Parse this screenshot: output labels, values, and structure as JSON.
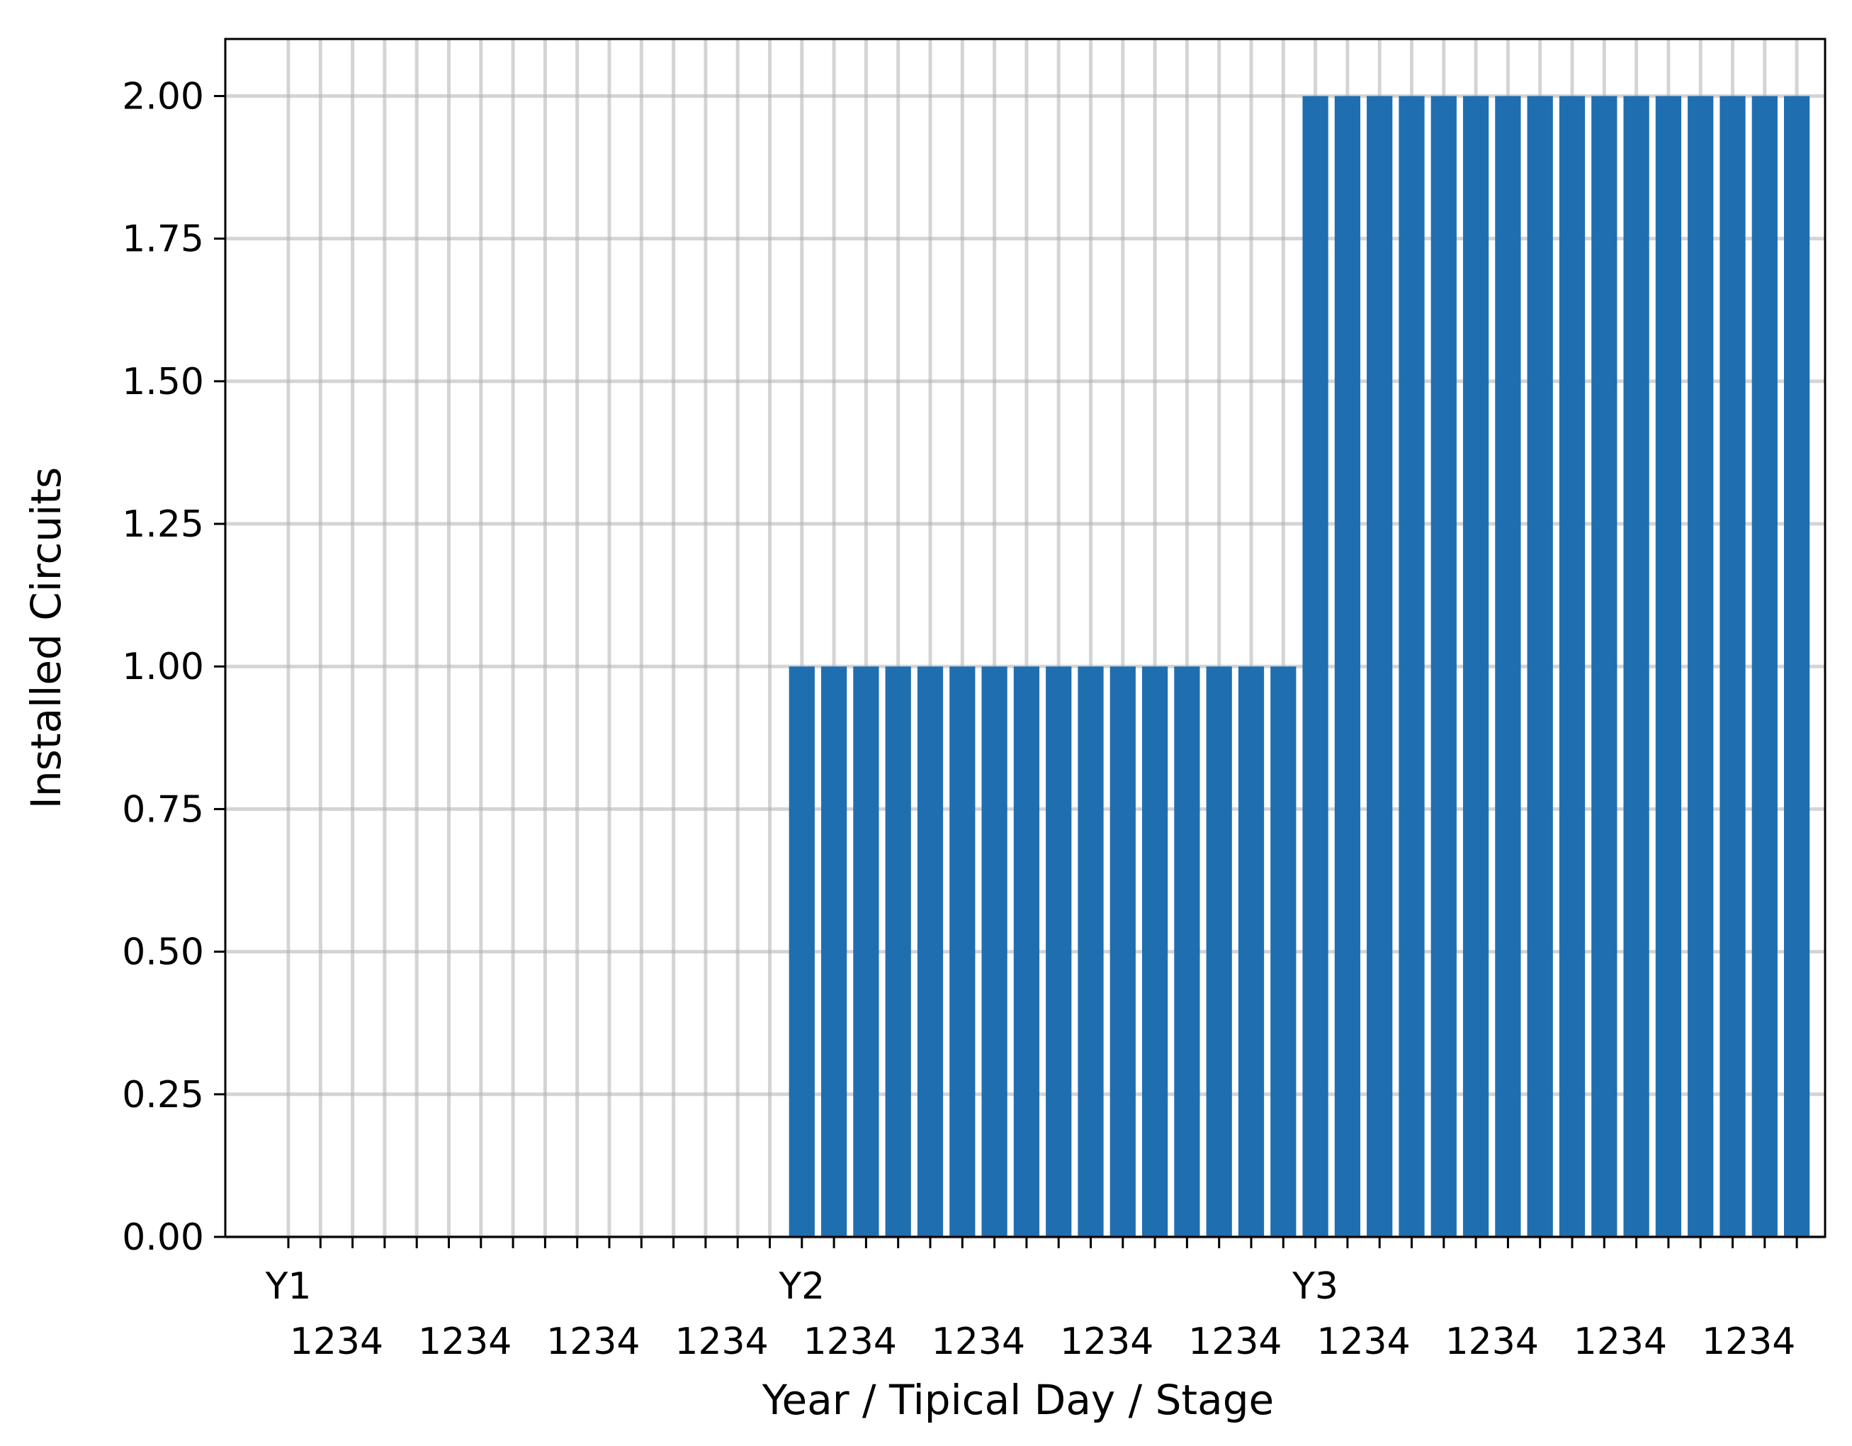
{
  "chart_data": {
    "type": "bar",
    "title": "",
    "xlabel": "Year / Tipical Day / Stage",
    "ylabel": "Installed Circuits",
    "ylim": [
      0,
      2.1
    ],
    "yticks": [
      "0.00",
      "0.25",
      "0.50",
      "0.75",
      "1.00",
      "1.25",
      "1.50",
      "1.75",
      "2.00"
    ],
    "grid": true,
    "bar_color": "#1f6fb0",
    "years": [
      "Y1",
      "Y2",
      "Y3"
    ],
    "days_per_year": 4,
    "stages_per_day": 4,
    "stage_label": "1234",
    "year_values": [
      0,
      1,
      2
    ]
  }
}
